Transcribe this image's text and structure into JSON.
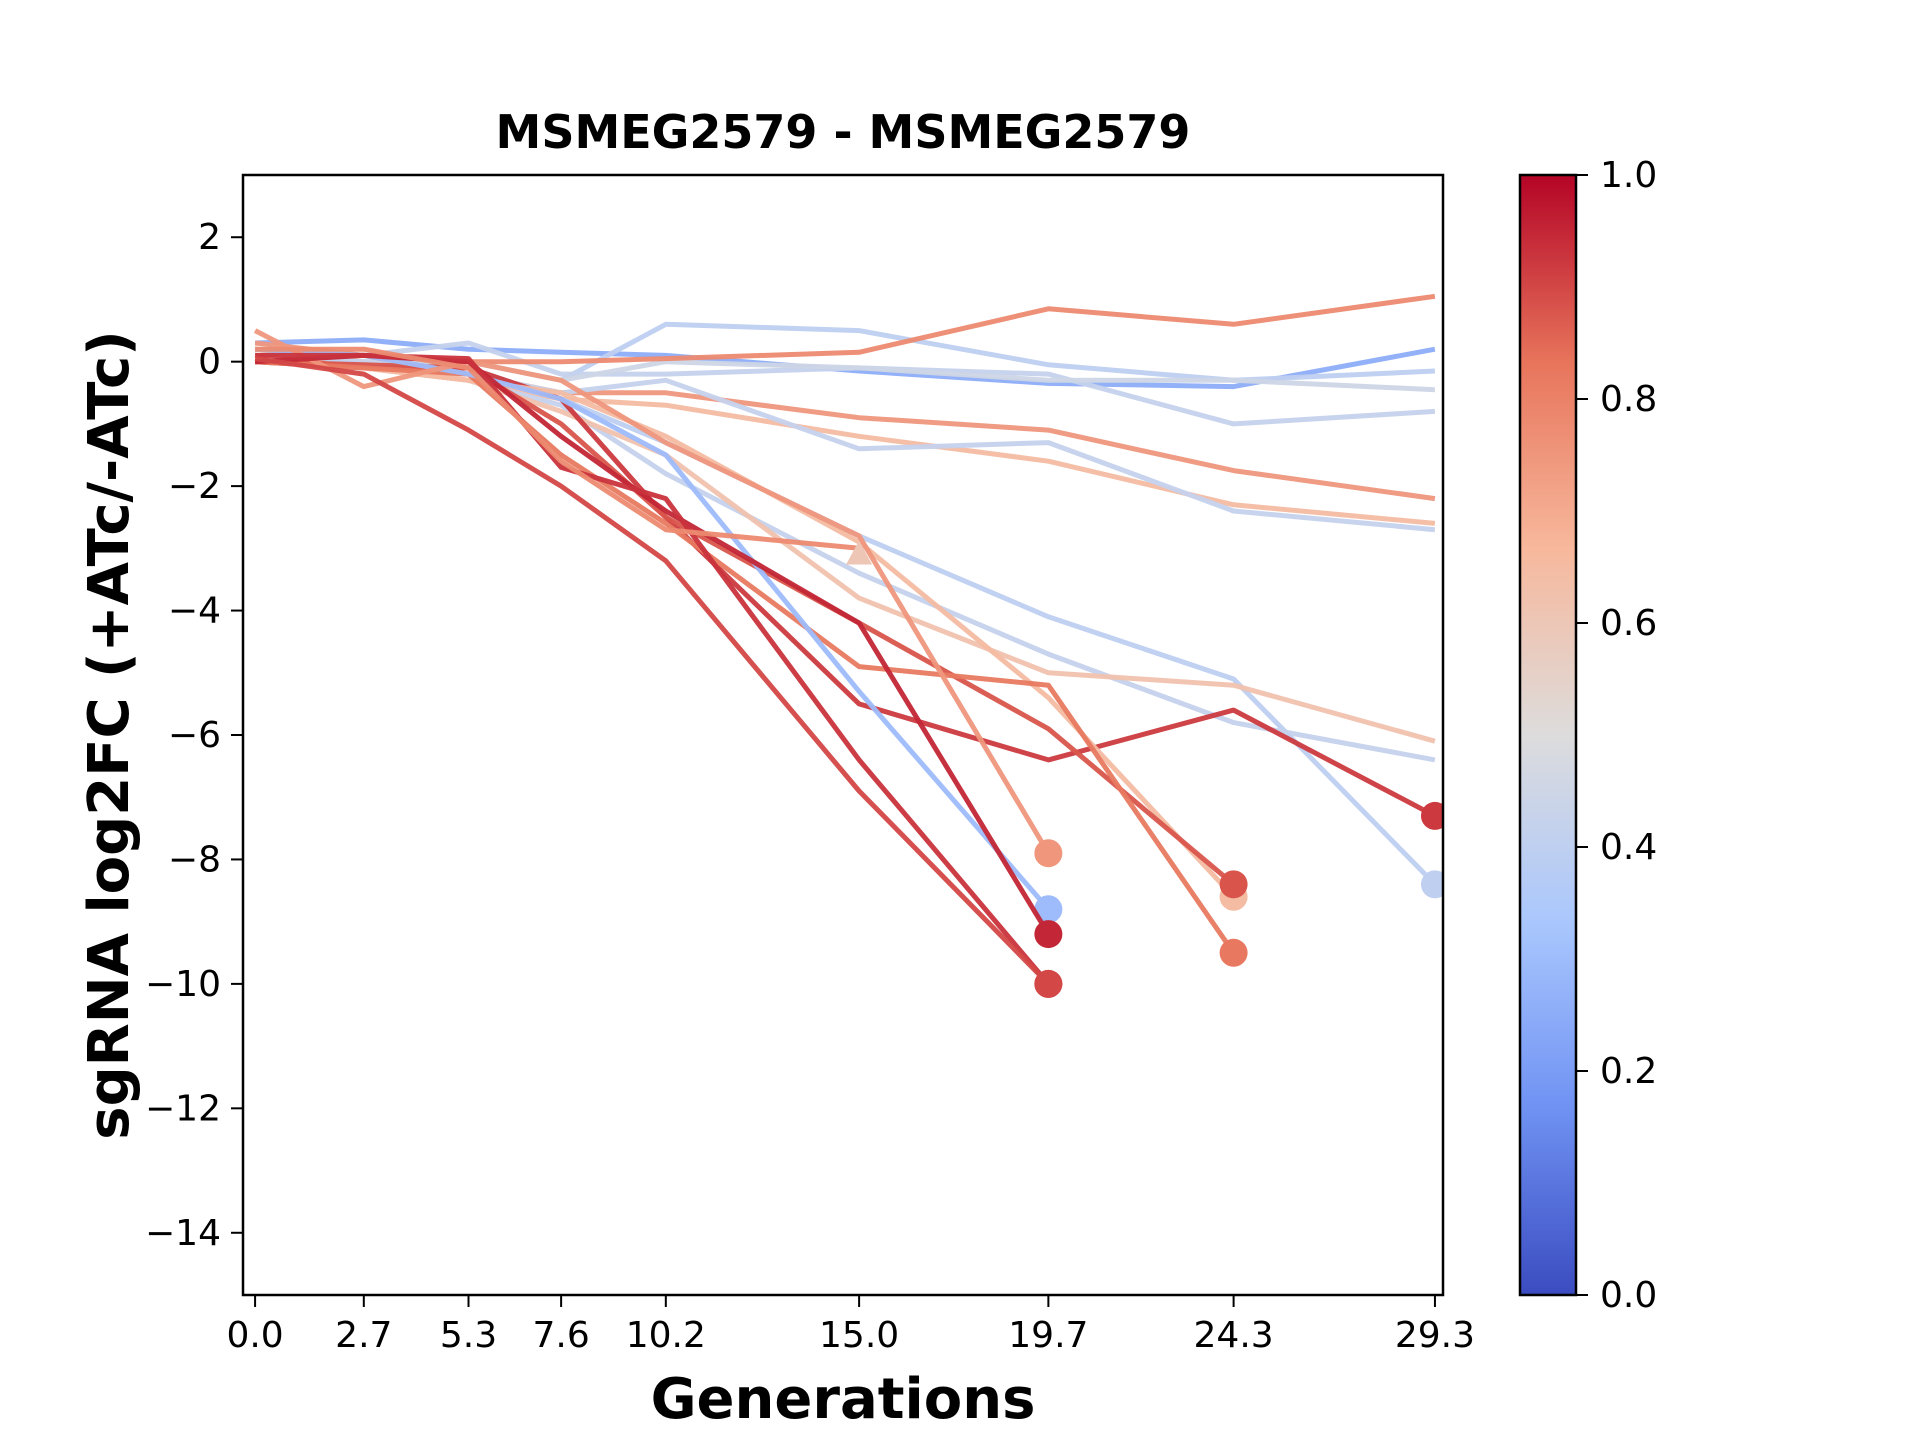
{
  "chart_data": {
    "type": "line",
    "title": "MSMEG2579 - MSMEG2579",
    "xlabel": "Generations",
    "ylabel": "sgRNA log2FC (+ATc/-ATc)",
    "xticks": [
      "0.0",
      "2.7",
      "5.3",
      "7.6",
      "10.2",
      "15.0",
      "19.7",
      "24.3",
      "29.3"
    ],
    "xlim": [
      -0.3,
      29.5
    ],
    "ylim": [
      -15,
      3
    ],
    "yticks": [
      2,
      0,
      -2,
      -4,
      -6,
      -8,
      -10,
      -12,
      -14
    ],
    "yticklabels": [
      "2",
      "0",
      "−2",
      "−4",
      "−6",
      "−8",
      "−10",
      "−12",
      "−14"
    ],
    "colorbar": {
      "colormap": "coolwarm",
      "range": [
        0.0,
        1.0
      ],
      "ticks": [
        "0.0",
        "0.2",
        "0.4",
        "0.6",
        "0.8",
        "1.0"
      ],
      "stops": [
        "#3b4cc0",
        "#6f92f3",
        "#aac7fd",
        "#dddcdc",
        "#f7b89c",
        "#e7745b",
        "#b40426"
      ]
    },
    "grid": false,
    "legend": "none",
    "series": [
      {
        "c": 0.25,
        "x": [
          0,
          2.7,
          5.3,
          7.6,
          10.2,
          15.0,
          19.7,
          24.3,
          29.3
        ],
        "y": [
          0.3,
          0.35,
          0.2,
          0.15,
          0.1,
          -0.15,
          -0.35,
          -0.4,
          0.2
        ]
      },
      {
        "c": 0.4,
        "x": [
          0,
          2.7,
          5.3,
          7.6,
          10.2,
          15.0,
          19.7,
          24.3,
          29.3
        ],
        "y": [
          0.1,
          0.0,
          0.0,
          -0.3,
          0.6,
          0.5,
          -0.05,
          -0.3,
          -0.15
        ]
      },
      {
        "c": 0.42,
        "x": [
          0,
          2.7,
          5.3,
          7.6,
          10.2,
          15.0,
          19.7,
          24.3,
          29.3
        ],
        "y": [
          0.2,
          0.1,
          0.3,
          -0.2,
          -0.2,
          -0.1,
          -0.2,
          -1.0,
          -0.8
        ]
      },
      {
        "c": 0.45,
        "x": [
          0,
          2.7,
          5.3,
          7.6,
          10.2,
          15.0,
          19.7,
          24.3,
          29.3
        ],
        "y": [
          0.0,
          0.0,
          0.0,
          -0.3,
          0.0,
          -0.1,
          -0.3,
          -0.3,
          -0.45
        ]
      },
      {
        "c": 0.78,
        "x": [
          0,
          2.7,
          5.3,
          7.6,
          10.2,
          15.0,
          19.7,
          24.3,
          29.3
        ],
        "y": [
          0.2,
          0.1,
          0.0,
          0.0,
          0.05,
          0.15,
          0.85,
          0.6,
          1.05
        ]
      },
      {
        "c": 0.75,
        "x": [
          0,
          2.7,
          5.3,
          7.6,
          10.2,
          15.0,
          19.7,
          24.3,
          29.3
        ],
        "y": [
          0.3,
          0.1,
          -0.2,
          -0.5,
          -0.5,
          -0.9,
          -1.1,
          -1.75,
          -2.2
        ]
      },
      {
        "c": 0.65,
        "x": [
          0,
          2.7,
          5.3,
          7.6,
          10.2,
          15.0,
          19.7,
          24.3,
          29.3
        ],
        "y": [
          0.2,
          0.0,
          -0.3,
          -0.6,
          -0.7,
          -1.2,
          -1.6,
          -2.3,
          -2.6
        ]
      },
      {
        "c": 0.42,
        "x": [
          0,
          2.7,
          5.3,
          7.6,
          10.2,
          15.0,
          19.7,
          24.3,
          29.3
        ],
        "y": [
          0.1,
          0.0,
          -0.2,
          -0.5,
          -0.3,
          -1.4,
          -1.3,
          -2.4,
          -2.7
        ]
      },
      {
        "c": 0.4,
        "x": [
          0,
          2.7,
          5.3,
          7.6,
          10.2,
          15.0,
          19.7,
          24.3,
          29.3
        ],
        "y": [
          0.1,
          -0.05,
          -0.1,
          -0.6,
          -1.3,
          -2.8,
          -4.1,
          -5.1,
          -8.4
        ],
        "end_marker": true
      },
      {
        "c": 0.42,
        "x": [
          0,
          2.7,
          5.3,
          7.6,
          10.2,
          15.0,
          19.7,
          24.3,
          29.3
        ],
        "y": [
          0.0,
          -0.1,
          -0.3,
          -0.7,
          -1.8,
          -3.4,
          -4.7,
          -5.8,
          -6.4
        ]
      },
      {
        "c": 0.62,
        "x": [
          0,
          2.7,
          5.3,
          7.6,
          10.2,
          15.0,
          19.7,
          24.3,
          29.3
        ],
        "y": [
          0.1,
          -0.1,
          -0.3,
          -0.8,
          -1.5,
          -3.8,
          -5.0,
          -5.2,
          -6.1
        ]
      },
      {
        "c": 0.92,
        "x": [
          0,
          2.7,
          5.3,
          7.6,
          10.2,
          15.0,
          19.7,
          24.3,
          29.3
        ],
        "y": [
          0.0,
          -0.1,
          -0.1,
          -0.6,
          -2.5,
          -5.5,
          -6.4,
          -5.6,
          -7.3
        ],
        "end_marker": true
      },
      {
        "c": 0.65,
        "x": [
          0,
          2.7,
          5.3,
          7.6,
          10.2,
          15.0,
          19.7,
          24.3
        ],
        "y": [
          0.1,
          -0.1,
          -0.3,
          -0.5,
          -1.2,
          -2.9,
          -5.4,
          -8.6
        ],
        "end_marker": true
      },
      {
        "c": 0.88,
        "x": [
          0,
          2.7,
          5.3,
          7.6,
          10.2,
          15.0,
          19.7,
          24.3
        ],
        "y": [
          0.0,
          -0.05,
          -0.1,
          -1.0,
          -2.5,
          -4.2,
          -5.9,
          -8.4
        ],
        "end_marker": true
      },
      {
        "c": 0.82,
        "x": [
          0,
          2.7,
          5.3,
          7.6,
          10.2,
          15.0,
          19.7,
          24.3
        ],
        "y": [
          0.0,
          -0.1,
          -0.2,
          -1.5,
          -2.6,
          -4.9,
          -5.2,
          -9.5
        ],
        "end_marker": true
      },
      {
        "c": 0.3,
        "x": [
          0,
          2.7,
          5.3,
          7.6,
          10.2,
          15.0,
          19.7
        ],
        "y": [
          0.2,
          0.1,
          -0.2,
          -0.6,
          -1.5,
          -5.3,
          -8.8
        ],
        "end_marker": true
      },
      {
        "c": 0.75,
        "x": [
          0,
          2.7,
          5.3,
          7.6,
          10.2,
          15.0,
          19.7
        ],
        "y": [
          0.5,
          -0.4,
          0.0,
          -0.3,
          -1.3,
          -2.8,
          -7.9
        ],
        "end_marker": true
      },
      {
        "c": 0.95,
        "x": [
          0,
          2.7,
          5.3,
          7.6,
          10.2,
          15.0,
          19.7
        ],
        "y": [
          0.0,
          0.1,
          0.0,
          -1.2,
          -2.4,
          -4.2,
          -9.2
        ],
        "end_marker": true
      },
      {
        "c": 0.93,
        "x": [
          0,
          2.7,
          5.3,
          7.6,
          10.2,
          15.0,
          19.7
        ],
        "y": [
          0.1,
          0.1,
          0.05,
          -1.7,
          -2.2,
          -6.4,
          -10.0
        ],
        "end_marker": true
      },
      {
        "c": 0.9,
        "x": [
          0,
          2.7,
          5.3,
          7.6,
          10.2,
          15.0,
          19.7
        ],
        "y": [
          0.05,
          -0.2,
          -1.1,
          -2.0,
          -3.2,
          -6.9,
          -10.0
        ],
        "end_marker": true
      },
      {
        "c": 0.78,
        "x": [
          0,
          2.7,
          5.3,
          7.6,
          10.2,
          15.0
        ],
        "y": [
          0.2,
          0.2,
          -0.1,
          -1.6,
          -2.7,
          -3.0
        ]
      },
      {
        "c": 0.6,
        "x": [
          15.0
        ],
        "y": [
          -3.1
        ],
        "marker": "triangle"
      }
    ]
  }
}
